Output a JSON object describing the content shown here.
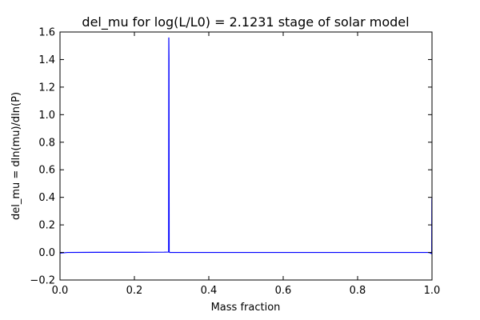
{
  "chart_data": {
    "type": "line",
    "title": "del_mu for log(L/L0) = 2.1231 stage of solar model",
    "xlabel": "Mass fraction",
    "ylabel": "del_mu = dln(mu)/dln(P)",
    "xlim": [
      0.0,
      1.0
    ],
    "ylim": [
      -0.2,
      1.6
    ],
    "xticks": [
      "0.0",
      "0.2",
      "0.4",
      "0.6",
      "0.8",
      "1.0"
    ],
    "yticks": [
      "−0.2",
      "0.0",
      "0.2",
      "0.4",
      "0.6",
      "0.8",
      "1.0",
      "1.2",
      "1.4",
      "1.6"
    ],
    "grid": false,
    "series": [
      {
        "color": "#0000ff",
        "x": [
          0.0,
          0.02,
          0.1,
          0.2,
          0.28,
          0.292,
          0.2925,
          0.293,
          0.2935,
          0.295,
          0.4,
          0.6,
          0.8,
          0.98,
          0.99,
          0.995,
          0.9985,
          0.9992,
          0.9996,
          1.0
        ],
        "y": [
          -0.005,
          0.0,
          0.001,
          0.001,
          0.002,
          0.003,
          1.56,
          1.4,
          0.005,
          0.0,
          0.0,
          0.0,
          0.0,
          0.0,
          0.0,
          -0.003,
          -0.008,
          0.0,
          0.38,
          0.4
        ]
      }
    ]
  }
}
